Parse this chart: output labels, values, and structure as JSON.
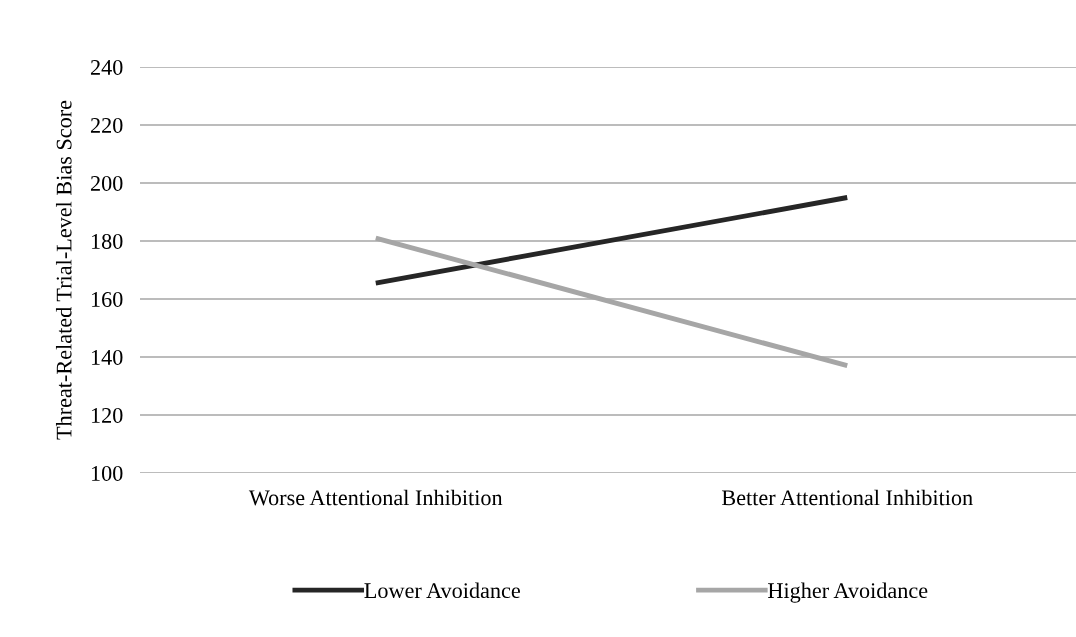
{
  "chart_data": {
    "type": "line",
    "ylabel": "Threat-Related Trial-Level Bias Score",
    "categories": [
      "Worse Attentional Inhibition",
      "Better Attentional Inhibition"
    ],
    "series": [
      {
        "name": "Lower Avoidance",
        "color": "#262626",
        "values": [
          165.5,
          195
        ]
      },
      {
        "name": "Higher Avoidance",
        "color": "#a6a6a6",
        "values": [
          181,
          137
        ]
      }
    ],
    "ylim": [
      100,
      240
    ],
    "yticks": [
      100,
      120,
      140,
      160,
      180,
      200,
      220,
      240
    ],
    "grid": "y",
    "legend": "bottom",
    "marker": "none",
    "line_style": "solid"
  }
}
